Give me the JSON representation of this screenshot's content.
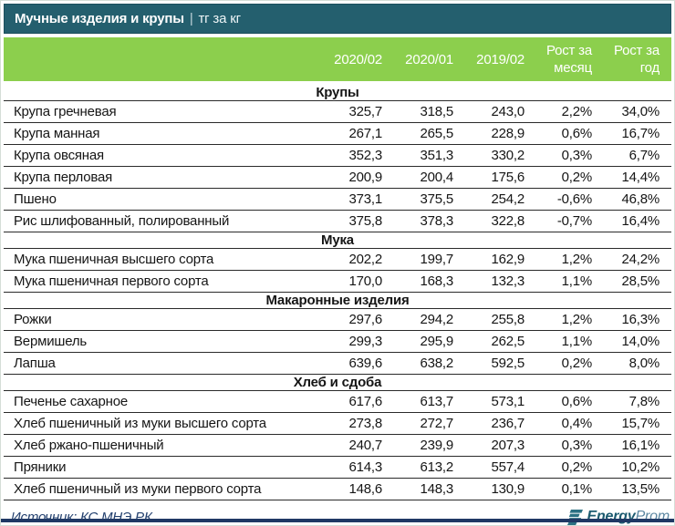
{
  "title": {
    "main": "Мучные изделия и крупы",
    "separator": "|",
    "unit": "тг за кг"
  },
  "chart_data": {
    "type": "table",
    "title": "Мучные изделия и крупы | тг за кг",
    "unit": "тг за кг",
    "columns": [
      "2020/02",
      "2020/01",
      "2019/02",
      "Рост за месяц",
      "Рост за год"
    ],
    "sections": [
      {
        "name": "Крупы",
        "rows": [
          {
            "label": "Крупа гречневая",
            "values": [
              "325,7",
              "318,5",
              "243,0",
              "2,2%",
              "34,0%"
            ]
          },
          {
            "label": "Крупа манная",
            "values": [
              "267,1",
              "265,5",
              "228,9",
              "0,6%",
              "16,7%"
            ]
          },
          {
            "label": "Крупа овсяная",
            "values": [
              "352,3",
              "351,3",
              "330,2",
              "0,3%",
              "6,7%"
            ]
          },
          {
            "label": "Крупа перловая",
            "values": [
              "200,9",
              "200,4",
              "175,6",
              "0,2%",
              "14,4%"
            ]
          },
          {
            "label": "Пшено",
            "values": [
              "373,1",
              "375,5",
              "254,2",
              "-0,6%",
              "46,8%"
            ]
          },
          {
            "label": "Рис шлифованный, полированный",
            "values": [
              "375,8",
              "378,3",
              "322,8",
              "-0,7%",
              "16,4%"
            ]
          }
        ]
      },
      {
        "name": "Мука",
        "rows": [
          {
            "label": "Мука пшеничная высшего сорта",
            "values": [
              "202,2",
              "199,7",
              "162,9",
              "1,2%",
              "24,2%"
            ]
          },
          {
            "label": "Мука пшеничная первого сорта",
            "values": [
              "170,0",
              "168,3",
              "132,3",
              "1,1%",
              "28,5%"
            ]
          }
        ]
      },
      {
        "name": "Макаронные изделия",
        "rows": [
          {
            "label": "Рожки",
            "values": [
              "297,6",
              "294,2",
              "255,8",
              "1,2%",
              "16,3%"
            ]
          },
          {
            "label": "Вермишель",
            "values": [
              "299,3",
              "295,9",
              "262,5",
              "1,1%",
              "14,0%"
            ]
          },
          {
            "label": "Лапша",
            "values": [
              "639,6",
              "638,2",
              "592,5",
              "0,2%",
              "8,0%"
            ]
          }
        ]
      },
      {
        "name": "Хлеб и сдоба",
        "rows": [
          {
            "label": "Печенье сахарное",
            "values": [
              "617,6",
              "613,7",
              "573,1",
              "0,6%",
              "7,8%"
            ]
          },
          {
            "label": "Хлеб пшеничный из муки высшего сорта",
            "values": [
              "273,8",
              "272,7",
              "236,7",
              "0,4%",
              "15,7%"
            ]
          },
          {
            "label": "Хлеб ржано-пшеничный",
            "values": [
              "240,7",
              "239,9",
              "207,3",
              "0,3%",
              "16,1%"
            ]
          },
          {
            "label": "Пряники",
            "values": [
              "614,3",
              "613,2",
              "557,4",
              "0,2%",
              "10,2%"
            ]
          },
          {
            "label": "Хлеб пшеничный из муки первого сорта",
            "values": [
              "148,6",
              "148,3",
              "130,9",
              "0,1%",
              "13,5%"
            ]
          }
        ]
      }
    ],
    "source": "Источник: КС МНЭ РК"
  },
  "footer": {
    "source": "Источник: КС МНЭ РК",
    "logo": {
      "bold": "Energy",
      "light": "Prom"
    }
  },
  "colors": {
    "title_bg": "#245f6e",
    "column_header_bg": "#8ccf4d",
    "row_line": "#2a2a2a",
    "footer_text": "#24416f",
    "bottom_line": "#1f3864",
    "logo_icon": "#2b7183",
    "logo_bold": "#1c5b70",
    "logo_light": "#5c87a1"
  }
}
